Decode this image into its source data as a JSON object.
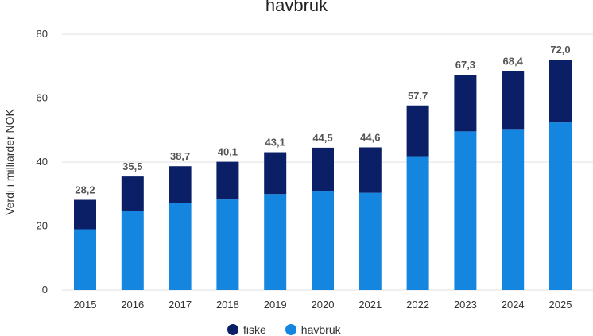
{
  "chart_data": {
    "type": "bar",
    "stacked": true,
    "title": "havbruk",
    "xlabel": "",
    "ylabel": "Verdi i milliarder NOK",
    "ylim": [
      0,
      80
    ],
    "yticks": [
      0,
      20,
      40,
      60,
      80
    ],
    "grid": true,
    "legend_position": "bottom",
    "categories": [
      "2015",
      "2016",
      "2017",
      "2018",
      "2019",
      "2020",
      "2021",
      "2022",
      "2023",
      "2024",
      "2025"
    ],
    "totals": [
      "28,2",
      "35,5",
      "38,7",
      "40,1",
      "43,1",
      "44,5",
      "44,6",
      "57,7",
      "67,3",
      "68,4",
      "72,0"
    ],
    "series": [
      {
        "name": "havbruk",
        "color": "#1486e0",
        "values": [
          19.0,
          24.6,
          27.3,
          28.3,
          30.0,
          30.8,
          30.4,
          41.6,
          49.6,
          50.1,
          52.4
        ]
      },
      {
        "name": "fiske",
        "color": "#0a1f66",
        "values": [
          9.2,
          10.9,
          11.4,
          11.8,
          13.1,
          13.7,
          14.2,
          16.1,
          17.7,
          18.3,
          19.6
        ]
      }
    ]
  }
}
